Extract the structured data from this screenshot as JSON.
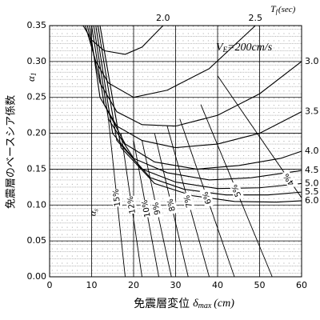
{
  "chart_data": {
    "type": "line",
    "x_label": [
      "免震層変位",
      "δ",
      "max",
      "(cm)"
    ],
    "y_label": "免震層のベースシア係数",
    "y_symbol": [
      "α",
      "1"
    ],
    "top_label": [
      "T",
      "f",
      "(sec)"
    ],
    "annotation": [
      "V",
      "E",
      "=200cm/s"
    ],
    "alpha_label": [
      "α",
      "s"
    ],
    "color": "#000000",
    "grid": true,
    "xlim": [
      0,
      60
    ],
    "xticks": [
      0,
      10,
      20,
      30,
      40,
      50,
      60
    ],
    "ylim": [
      0,
      0.35
    ],
    "yticks": [
      {
        "value": 0,
        "label": "0.00"
      },
      0.05,
      {
        "value": 0.1,
        "label": "0.10"
      },
      0.15,
      {
        "value": 0.2,
        "label": "0.20"
      },
      0.25,
      {
        "value": 0.3,
        "label": "0.30"
      },
      0.35
    ],
    "series": [
      {
        "name": "2.0",
        "x": [
          8,
          10,
          13,
          18,
          22,
          27
        ],
        "values": [
          0.35,
          0.33,
          0.315,
          0.31,
          0.32,
          0.35
        ]
      },
      {
        "name": "2.5",
        "x": [
          8.5,
          11,
          14,
          20,
          28,
          38,
          49
        ],
        "values": [
          0.35,
          0.3,
          0.27,
          0.25,
          0.26,
          0.29,
          0.35
        ]
      },
      {
        "name": "3.0",
        "x": [
          9,
          12,
          16,
          22,
          30,
          40,
          50,
          60
        ],
        "values": [
          0.35,
          0.27,
          0.23,
          0.212,
          0.21,
          0.225,
          0.255,
          0.3
        ]
      },
      {
        "name": "3.5",
        "x": [
          9.5,
          12,
          16,
          22,
          30,
          40,
          50,
          60
        ],
        "values": [
          0.35,
          0.25,
          0.21,
          0.19,
          0.18,
          0.185,
          0.2,
          0.23
        ]
      },
      {
        "name": "4.0",
        "x": [
          10,
          13,
          18,
          25,
          35,
          45,
          55,
          60
        ],
        "values": [
          0.35,
          0.24,
          0.185,
          0.16,
          0.15,
          0.155,
          0.165,
          0.175
        ]
      },
      {
        "name": "4.5",
        "x": [
          10.5,
          14,
          20,
          28,
          38,
          48,
          60
        ],
        "values": [
          0.35,
          0.22,
          0.165,
          0.145,
          0.135,
          0.138,
          0.148
        ]
      },
      {
        "name": "5.0",
        "x": [
          11,
          15,
          22,
          30,
          40,
          50,
          60
        ],
        "values": [
          0.35,
          0.2,
          0.15,
          0.132,
          0.123,
          0.124,
          0.13
        ]
      },
      {
        "name": "5.5",
        "x": [
          11.5,
          16,
          24,
          32,
          42,
          52,
          60
        ],
        "values": [
          0.35,
          0.19,
          0.138,
          0.122,
          0.114,
          0.114,
          0.118
        ]
      },
      {
        "name": "6.0",
        "x": [
          12,
          17,
          25,
          34,
          44,
          54,
          60
        ],
        "values": [
          0.35,
          0.18,
          0.13,
          0.113,
          0.105,
          0.104,
          0.106
        ]
      }
    ],
    "alpha_series": [
      {
        "name": "15%",
        "x": [
          14,
          18
        ],
        "values": [
          0.22,
          0
        ]
      },
      {
        "name": "12%",
        "x": [
          17,
          22
        ],
        "values": [
          0.2,
          0
        ]
      },
      {
        "name": "10%",
        "x": [
          20,
          26
        ],
        "values": [
          0.19,
          0
        ]
      },
      {
        "name": "9%",
        "x": [
          22,
          29
        ],
        "values": [
          0.19,
          0
        ]
      },
      {
        "name": "8%",
        "x": [
          25,
          33
        ],
        "values": [
          0.2,
          0
        ]
      },
      {
        "name": "7%",
        "x": [
          28,
          38
        ],
        "values": [
          0.21,
          0
        ]
      },
      {
        "name": "6%",
        "x": [
          31,
          44
        ],
        "values": [
          0.22,
          0
        ]
      },
      {
        "name": "5%",
        "x": [
          36,
          53
        ],
        "values": [
          0.24,
          0
        ]
      },
      {
        "name": "4%",
        "x": [
          40,
          60
        ],
        "values": [
          0.28,
          0.11
        ]
      }
    ]
  }
}
